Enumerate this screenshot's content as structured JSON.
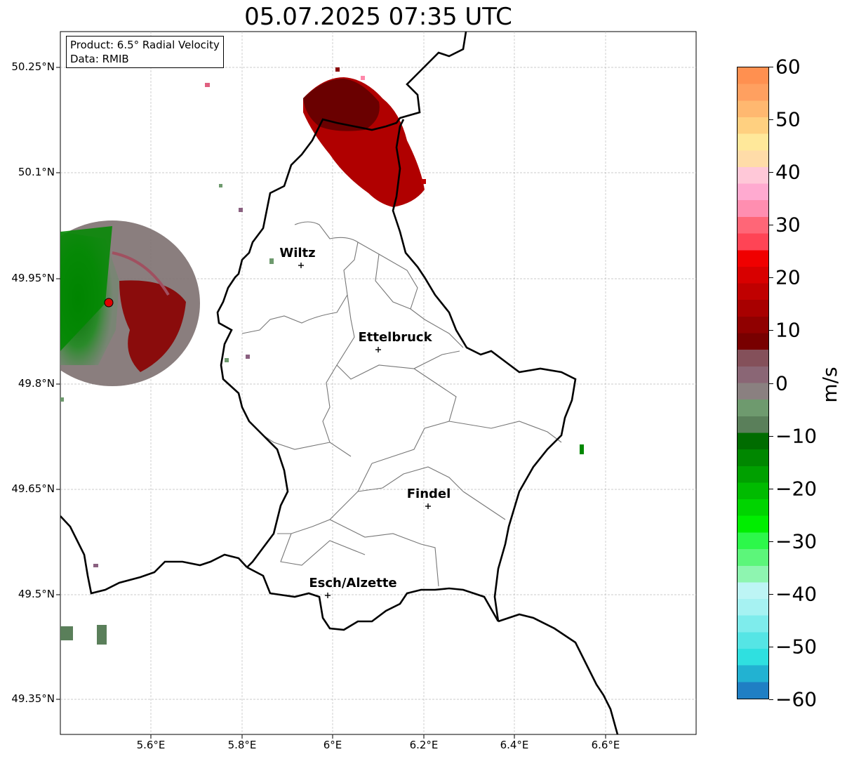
{
  "title": "05.07.2025 07:35 UTC",
  "info": {
    "product": "Product: 6.5° Radial Velocity",
    "source": "Data: RMIB"
  },
  "axes": {
    "lat_ticks": [
      "50.25°N",
      "50.1°N",
      "49.95°N",
      "49.8°N",
      "49.65°N",
      "49.5°N",
      "49.35°N"
    ],
    "lon_ticks": [
      "5.6°E",
      "5.8°E",
      "6°E",
      "6.2°E",
      "6.4°E",
      "6.6°E"
    ]
  },
  "cities": [
    {
      "name": "Wiltz",
      "lon": 5.93,
      "lat": 49.97
    },
    {
      "name": "Ettelbruck",
      "lon": 6.1,
      "lat": 49.85
    },
    {
      "name": "Findel",
      "lon": 6.21,
      "lat": 49.63
    },
    {
      "name": "Esch/Alzette",
      "lon": 5.99,
      "lat": 49.5
    }
  ],
  "radar_site": {
    "lon": 5.51,
    "lat": 49.92,
    "color": "#e00000"
  },
  "colorbar": {
    "label": "m/s",
    "min": -60,
    "max": 60,
    "ticks": [
      "60",
      "50",
      "40",
      "30",
      "20",
      "10",
      "0",
      "−10",
      "−20",
      "−30",
      "−40",
      "−50",
      "−60"
    ],
    "colors": [
      "#1f7fc4",
      "#22b2d2",
      "#2fe0e0",
      "#55e5e5",
      "#7eecec",
      "#a6f2f2",
      "#bdf5f5",
      "#8ef5b0",
      "#5cf67a",
      "#2cf84a",
      "#00ee00",
      "#00d400",
      "#00bb00",
      "#00a000",
      "#008700",
      "#006c00",
      "#5a7f5a",
      "#6e9a6e",
      "#8a8080",
      "#8a6675",
      "#84505a",
      "#780000",
      "#900000",
      "#a80000",
      "#c00000",
      "#d80000",
      "#f00000",
      "#ff4455",
      "#ff6677",
      "#ff8eb0",
      "#ffaad0",
      "#ffc8d8",
      "#ffdca8",
      "#ffe89a",
      "#ffd080",
      "#ffb870",
      "#ffa060",
      "#ff9050"
    ]
  }
}
